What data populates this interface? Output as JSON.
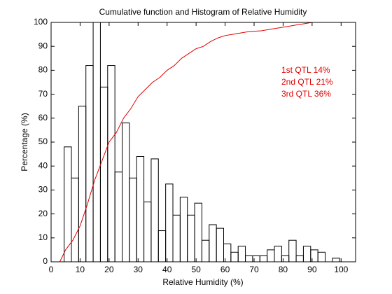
{
  "chart_data": {
    "type": "histogram",
    "title": "Cumulative function and Histogram of Relative Humidity",
    "xlabel": "Relative Humidity (%)",
    "ylabel": "Percentage (%)",
    "xlim": [
      0,
      105
    ],
    "ylim": [
      0,
      100
    ],
    "xticks": [
      0,
      10,
      20,
      30,
      40,
      50,
      60,
      70,
      80,
      90,
      100
    ],
    "yticks": [
      0,
      10,
      20,
      30,
      40,
      50,
      60,
      70,
      80,
      90,
      100
    ],
    "bins": [
      4.5,
      7,
      9.5,
      12,
      14.5,
      17,
      19.5,
      22,
      24.5,
      27,
      29.5,
      32,
      34.5,
      37,
      39.5,
      42,
      44.5,
      47,
      49.5,
      52,
      54.5,
      57,
      59.5,
      62,
      64.5,
      67,
      69.5,
      72,
      74.5,
      77,
      79.5,
      82,
      84.5,
      87,
      89.5,
      92,
      94.5,
      97,
      99.5
    ],
    "counts": [
      48,
      35,
      65,
      82,
      100,
      73,
      82,
      37.5,
      58,
      35,
      44,
      25,
      43,
      13,
      32.5,
      19.5,
      27,
      19.5,
      24.5,
      9,
      15.5,
      14,
      7.5,
      4,
      6.5,
      2.5,
      2.5,
      2.5,
      5,
      6.5,
      2.5,
      9,
      2.5,
      6.5,
      5,
      4,
      0,
      1.5
    ],
    "color": "#000000",
    "cumulative": {
      "x": [
        3,
        5,
        7.5,
        10,
        12.5,
        15,
        17.5,
        20,
        22.5,
        25,
        27.5,
        30,
        32.5,
        35,
        37.5,
        40,
        42.5,
        45,
        47.5,
        50,
        52.5,
        55,
        57.5,
        60,
        62.5,
        65,
        67.5,
        70,
        72.5,
        75,
        77.5,
        80,
        82.5,
        85,
        87.5,
        90,
        100
      ],
      "values": [
        0,
        5,
        9,
        15,
        24,
        34,
        42,
        50,
        54,
        60,
        64,
        69,
        72,
        75,
        77,
        80,
        82,
        85,
        87,
        89,
        90,
        92,
        93.5,
        94.5,
        95,
        95.5,
        96,
        96.3,
        96.5,
        97,
        97.5,
        98,
        98.5,
        99,
        99.5,
        100,
        100
      ],
      "color": "#e00000"
    },
    "annotations": [
      "1st QTL  14%",
      "2nd QTL  21%",
      "3rd QTL  36%"
    ]
  }
}
